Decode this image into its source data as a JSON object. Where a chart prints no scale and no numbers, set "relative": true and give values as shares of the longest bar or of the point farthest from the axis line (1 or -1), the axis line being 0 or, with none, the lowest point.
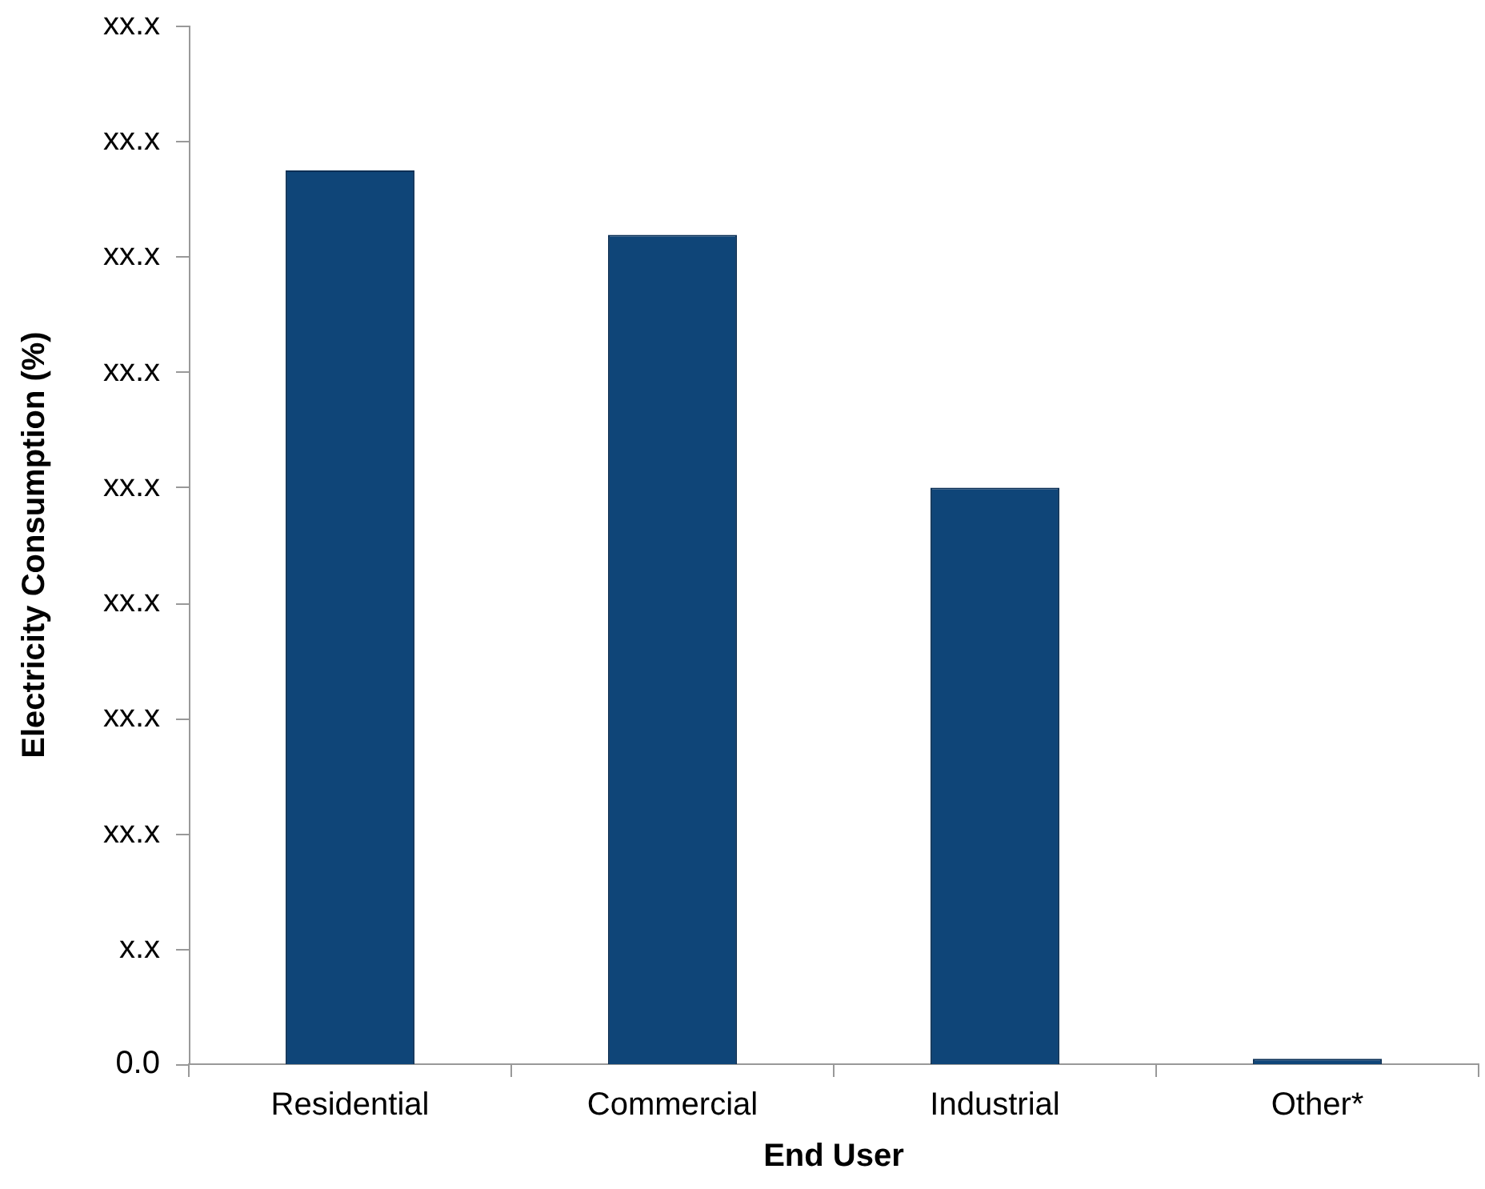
{
  "chart_data": {
    "type": "bar",
    "relative": true,
    "xlabel": "End User",
    "ylabel": "Electricity Consumption (%)",
    "categories": [
      "Residential",
      "Commercial",
      "Industrial",
      "Other*"
    ],
    "values": [
      1,
      0.928,
      0.645,
      0.006
    ],
    "color": "#0f4578",
    "annotations": [
      "0.0",
      "x.x",
      "xx.x",
      "xx.x",
      "xx.x",
      "xx.x",
      "xx.x",
      "xx.x",
      "xx.x",
      "xx.x"
    ],
    "grid": false,
    "legend": false
  }
}
